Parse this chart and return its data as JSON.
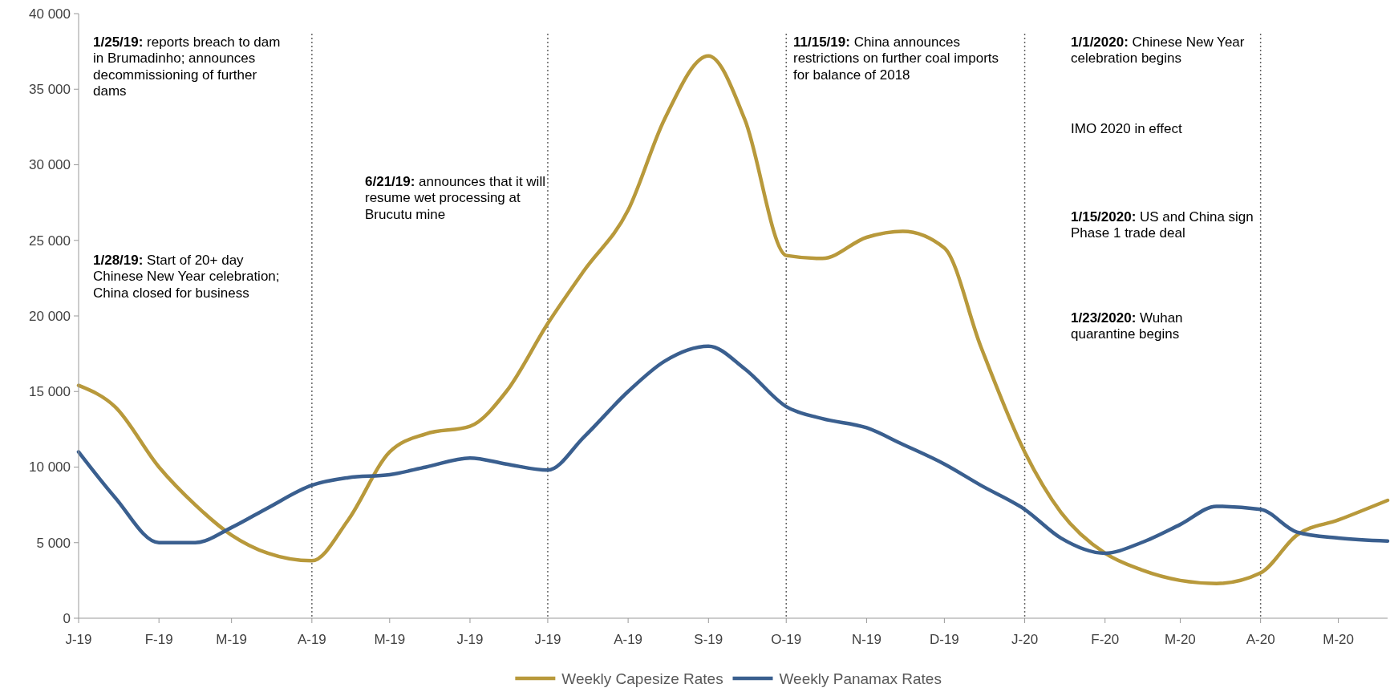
{
  "chart_data": {
    "type": "line",
    "xlim": [
      "2019-01-01",
      "2020-05-20"
    ],
    "xticks": [
      {
        "value": "2019-01-01",
        "label": "J-19"
      },
      {
        "value": "2019-02-01",
        "label": "F-19"
      },
      {
        "value": "2019-03-01",
        "label": "M-19"
      },
      {
        "value": "2019-04-01",
        "label": "A-19"
      },
      {
        "value": "2019-05-01",
        "label": "M-19"
      },
      {
        "value": "2019-06-01",
        "label": "J-19"
      },
      {
        "value": "2019-07-01",
        "label": "J-19"
      },
      {
        "value": "2019-08-01",
        "label": "A-19"
      },
      {
        "value": "2019-09-01",
        "label": "S-19"
      },
      {
        "value": "2019-10-01",
        "label": "O-19"
      },
      {
        "value": "2019-11-01",
        "label": "N-19"
      },
      {
        "value": "2019-12-01",
        "label": "D-19"
      },
      {
        "value": "2020-01-01",
        "label": "J-20"
      },
      {
        "value": "2020-02-01",
        "label": "F-20"
      },
      {
        "value": "2020-03-01",
        "label": "M-20"
      },
      {
        "value": "2020-04-01",
        "label": "A-20"
      },
      {
        "value": "2020-05-01",
        "label": "M-20"
      }
    ],
    "ylim": [
      0,
      40000
    ],
    "yticks": [
      {
        "value": 0,
        "label": "0"
      },
      {
        "value": 5000,
        "label": "5 000"
      },
      {
        "value": 10000,
        "label": "10 000"
      },
      {
        "value": 15000,
        "label": "15 000"
      },
      {
        "value": 20000,
        "label": "20 000"
      },
      {
        "value": 25000,
        "label": "25 000"
      },
      {
        "value": 30000,
        "label": "30 000"
      },
      {
        "value": 35000,
        "label": "35 000"
      },
      {
        "value": 40000,
        "label": "40 000"
      }
    ],
    "x": [
      "2019-01-01",
      "2019-01-15",
      "2019-02-01",
      "2019-02-15",
      "2019-03-01",
      "2019-03-15",
      "2019-04-01",
      "2019-04-15",
      "2019-05-01",
      "2019-05-15",
      "2019-06-01",
      "2019-06-15",
      "2019-07-01",
      "2019-07-15",
      "2019-08-01",
      "2019-08-15",
      "2019-09-01",
      "2019-09-15",
      "2019-10-01",
      "2019-10-15",
      "2019-11-01",
      "2019-11-15",
      "2019-12-01",
      "2019-12-15",
      "2020-01-01",
      "2020-01-15",
      "2020-02-01",
      "2020-02-15",
      "2020-03-01",
      "2020-03-15",
      "2020-04-01",
      "2020-04-15",
      "2020-05-01",
      "2020-05-20"
    ],
    "series": [
      {
        "name": "Weekly Capesize Rates",
        "color": "#b8993b",
        "values": [
          15400,
          14000,
          10000,
          7500,
          5500,
          4300,
          3800,
          6500,
          11000,
          12200,
          12700,
          15000,
          19500,
          23000,
          27000,
          33000,
          37200,
          33000,
          24000,
          23800,
          25200,
          25600,
          24500,
          18000,
          11000,
          7000,
          4300,
          3200,
          2500,
          2300,
          3000,
          5500,
          6500,
          7800
        ]
      },
      {
        "name": "Weekly Panamax Rates",
        "color": "#3a5f8f",
        "values": [
          11000,
          8000,
          5000,
          5000,
          6000,
          7300,
          8800,
          9300,
          9500,
          10000,
          10600,
          10200,
          9800,
          12000,
          15000,
          17000,
          18000,
          16500,
          14000,
          13200,
          12600,
          11500,
          10200,
          8800,
          7200,
          5300,
          4300,
          5000,
          6200,
          7400,
          7200,
          5700,
          5300,
          5100
        ]
      }
    ],
    "ref_lines": [
      {
        "axis": "x",
        "value": "2019-04-01",
        "line_style": "dotted",
        "color": "#666666"
      },
      {
        "axis": "x",
        "value": "2019-07-01",
        "line_style": "dotted",
        "color": "#666666"
      },
      {
        "axis": "x",
        "value": "2019-10-01",
        "line_style": "dotted",
        "color": "#666666"
      },
      {
        "axis": "x",
        "value": "2020-01-01",
        "line_style": "dotted",
        "color": "#666666"
      },
      {
        "axis": "x",
        "value": "2020-04-01",
        "line_style": "dotted",
        "color": "#666666"
      }
    ],
    "annotations": [
      "1/25/19: reports breach to dam in Brumadinho; announces decommissioning of further dams",
      "1/28/19: Start of 20+ day Chinese New Year celebration; China closed for business",
      "6/21/19: announces that it will resume wet processing at Brucutu mine",
      "11/15/19: China announces restrictions on further coal imports for balance of 2018",
      "1/1/2020: Chinese New Year celebration begins",
      "IMO 2020 in effect",
      "1/15/2020: US and China sign Phase 1 trade deal",
      "1/23/2020: Wuhan quarantine begins"
    ],
    "legend": "bottom",
    "grid": false,
    "line_style": "solid"
  }
}
